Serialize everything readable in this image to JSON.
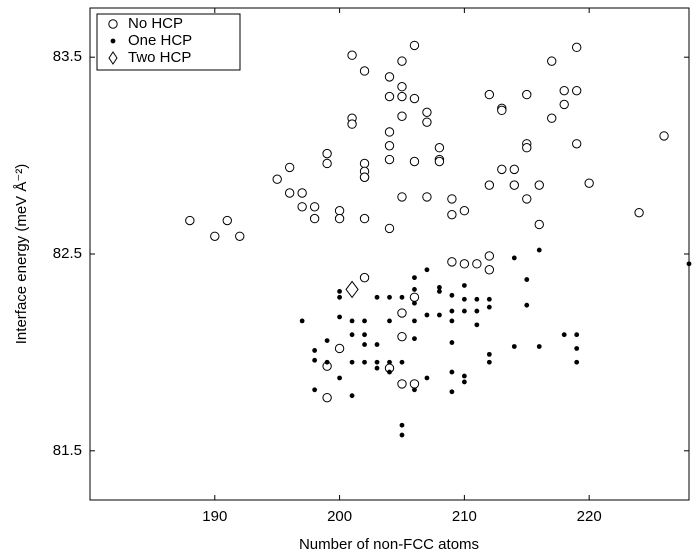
{
  "chart_data": {
    "type": "scatter",
    "xlabel": "Number of non-FCC atoms",
    "ylabel": "Interface energy (meV Å⁻²)",
    "xlim": [
      180,
      228
    ],
    "ylim": [
      81.25,
      83.75
    ],
    "xticks": [
      190,
      200,
      210,
      220
    ],
    "yticks": [
      81.5,
      82.5,
      83.5
    ],
    "legend": "upper left",
    "series": [
      {
        "name": "No HCP",
        "marker": "open-circle",
        "color": "#000000",
        "x": [
          188,
          190,
          191,
          192,
          195,
          196,
          196,
          197,
          197,
          198,
          198,
          199,
          199,
          200,
          200,
          201,
          201,
          201,
          202,
          202,
          202,
          202,
          202,
          202,
          204,
          204,
          204,
          204,
          204,
          204,
          205,
          205,
          205,
          205,
          205,
          206,
          206,
          206,
          207,
          207,
          207,
          208,
          208,
          208,
          209,
          209,
          210,
          212,
          212,
          213,
          213,
          213,
          214,
          214,
          215,
          215,
          215,
          215,
          216,
          216,
          217,
          217,
          218,
          218,
          219,
          219,
          219,
          220,
          224,
          226,
          210,
          211,
          209,
          205,
          206,
          202,
          200,
          199,
          199,
          205,
          204,
          205,
          206,
          212,
          212
        ],
        "values": [
          82.67,
          82.59,
          82.67,
          82.59,
          82.88,
          82.94,
          82.81,
          82.74,
          82.81,
          82.74,
          82.68,
          83.01,
          82.96,
          82.72,
          82.68,
          83.51,
          83.19,
          83.16,
          83.43,
          82.96,
          82.92,
          82.89,
          82.89,
          82.68,
          83.4,
          83.3,
          83.12,
          83.05,
          82.98,
          82.63,
          83.48,
          83.35,
          83.3,
          83.2,
          82.79,
          83.56,
          83.29,
          82.97,
          83.22,
          83.17,
          82.79,
          83.04,
          82.98,
          82.97,
          82.78,
          82.7,
          82.72,
          83.31,
          82.85,
          83.24,
          83.23,
          82.93,
          82.85,
          82.93,
          83.31,
          83.06,
          83.04,
          82.78,
          82.85,
          82.65,
          83.48,
          83.19,
          83.26,
          83.33,
          83.55,
          83.33,
          83.06,
          82.86,
          82.71,
          83.1,
          82.45,
          82.45,
          82.46,
          82.2,
          82.28,
          82.38,
          82.02,
          81.93,
          81.77,
          82.08,
          81.92,
          81.84,
          81.84,
          82.49,
          82.42
        ]
      },
      {
        "name": "One HCP",
        "marker": "filled-circle",
        "color": "#000000",
        "x": [
          197,
          198,
          198,
          198,
          199,
          199,
          200,
          200,
          200,
          200,
          201,
          201,
          201,
          201,
          202,
          202,
          202,
          202,
          203,
          203,
          203,
          203,
          204,
          204,
          204,
          204,
          205,
          205,
          205,
          205,
          206,
          206,
          206,
          206,
          206,
          206,
          207,
          207,
          207,
          208,
          208,
          208,
          209,
          209,
          209,
          209,
          209,
          209,
          210,
          210,
          210,
          210,
          210,
          211,
          211,
          211,
          212,
          212,
          212,
          212,
          214,
          214,
          215,
          215,
          216,
          216,
          218,
          219,
          219,
          219,
          228
        ],
        "values": [
          82.16,
          82.01,
          81.96,
          81.81,
          82.06,
          81.95,
          82.31,
          82.28,
          82.18,
          81.87,
          82.16,
          82.09,
          81.95,
          81.78,
          82.16,
          82.09,
          82.04,
          81.95,
          82.28,
          82.04,
          81.95,
          81.92,
          82.28,
          82.16,
          81.95,
          81.9,
          82.28,
          81.63,
          81.58,
          81.95,
          82.38,
          82.32,
          82.25,
          82.16,
          82.07,
          81.81,
          82.42,
          82.19,
          81.87,
          82.33,
          82.31,
          82.19,
          82.29,
          82.21,
          82.16,
          82.05,
          81.9,
          81.8,
          82.34,
          82.27,
          82.21,
          81.88,
          81.85,
          82.27,
          82.21,
          82.14,
          82.27,
          82.23,
          81.99,
          81.95,
          82.48,
          82.03,
          82.37,
          82.24,
          82.52,
          82.03,
          82.09,
          82.09,
          82.02,
          81.95,
          82.45
        ]
      },
      {
        "name": "Two HCP",
        "marker": "open-diamond",
        "color": "#000000",
        "x": [
          201
        ],
        "values": [
          82.32
        ]
      }
    ]
  }
}
